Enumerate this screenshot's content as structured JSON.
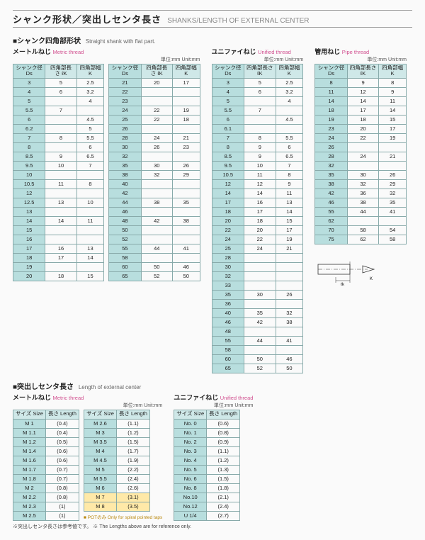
{
  "title": {
    "jp": "シャンク形状／突出しセンタ長さ",
    "en": "SHANKS/LENGTH OF EXTERNAL CENTER"
  },
  "section1": {
    "jp": "■シャンク四角部形状",
    "en": "Straight shank with flat part."
  },
  "section2": {
    "jp": "■突出しセンタ長さ",
    "en": "Length of external center"
  },
  "unit": "単位:mm Unit:mm",
  "sub": {
    "metric": {
      "jp": "メートルねじ",
      "en": "Metric thread"
    },
    "unified": {
      "jp": "ユニファイねじ",
      "en": "Unified thread"
    },
    "pipe": {
      "jp": "管用ねじ",
      "en": "Pipe thread"
    }
  },
  "hdr3": {
    "c1": "シャンク径\nDs",
    "c2": "四角部長さ\nℓK",
    "c3": "四角部幅\nK"
  },
  "hdr2": {
    "c1": "サイズ\nSize",
    "c2": "長さ\nLength"
  },
  "t1a": [
    [
      "3",
      "5",
      "2.5"
    ],
    [
      "4",
      "6",
      "3.2"
    ],
    [
      "5",
      "",
      "4"
    ],
    [
      "5.5",
      "7",
      ""
    ],
    [
      "6",
      "",
      "4.5"
    ],
    [
      "6.2",
      "",
      "5"
    ],
    [
      "7",
      "8",
      "5.5"
    ],
    [
      "8",
      "",
      "6"
    ],
    [
      "8.5",
      "9",
      "6.5"
    ],
    [
      "9.5",
      "10",
      "7"
    ],
    [
      "10",
      "",
      ""
    ],
    [
      "10.5",
      "11",
      "8"
    ],
    [
      "12",
      "",
      ""
    ],
    [
      "12.5",
      "13",
      "10"
    ],
    [
      "13",
      "",
      ""
    ],
    [
      "14",
      "14",
      "11"
    ],
    [
      "15",
      "",
      ""
    ],
    [
      "16",
      "",
      ""
    ],
    [
      "17",
      "16",
      "13"
    ],
    [
      "18",
      "17",
      "14"
    ],
    [
      "19",
      "",
      ""
    ],
    [
      "20",
      "18",
      "15"
    ]
  ],
  "t1b": [
    [
      "21",
      "20",
      "17"
    ],
    [
      "22",
      "",
      ""
    ],
    [
      "23",
      "",
      ""
    ],
    [
      "24",
      "22",
      "19"
    ],
    [
      "25",
      "22",
      "18"
    ],
    [
      "26",
      "",
      ""
    ],
    [
      "28",
      "24",
      "21"
    ],
    [
      "30",
      "26",
      "23"
    ],
    [
      "32",
      "",
      ""
    ],
    [
      "35",
      "30",
      "26"
    ],
    [
      "38",
      "32",
      "29"
    ],
    [
      "40",
      "",
      ""
    ],
    [
      "42",
      "",
      ""
    ],
    [
      "44",
      "38",
      "35"
    ],
    [
      "46",
      "",
      ""
    ],
    [
      "48",
      "42",
      "38"
    ],
    [
      "50",
      "",
      ""
    ],
    [
      "52",
      "",
      ""
    ],
    [
      "55",
      "44",
      "41"
    ],
    [
      "58",
      "",
      ""
    ],
    [
      "60",
      "50",
      "46"
    ],
    [
      "65",
      "52",
      "50"
    ]
  ],
  "t2": [
    [
      "3",
      "5",
      "2.5"
    ],
    [
      "4",
      "6",
      "3.2"
    ],
    [
      "5",
      "",
      "4"
    ],
    [
      "5.5",
      "7",
      ""
    ],
    [
      "6",
      "",
      "4.5"
    ],
    [
      "6.1",
      "",
      ""
    ],
    [
      "7",
      "8",
      "5.5"
    ],
    [
      "8",
      "9",
      "6"
    ],
    [
      "8.5",
      "9",
      "6.5"
    ],
    [
      "9.5",
      "10",
      "7"
    ],
    [
      "10.5",
      "11",
      "8"
    ],
    [
      "12",
      "12",
      "9"
    ],
    [
      "14",
      "14",
      "11"
    ],
    [
      "17",
      "16",
      "13"
    ],
    [
      "18",
      "17",
      "14"
    ],
    [
      "20",
      "18",
      "15"
    ],
    [
      "22",
      "20",
      "17"
    ],
    [
      "24",
      "22",
      "19"
    ],
    [
      "25",
      "24",
      "21"
    ],
    [
      "28",
      "",
      ""
    ],
    [
      "30",
      "",
      ""
    ],
    [
      "32",
      "",
      ""
    ],
    [
      "33",
      "",
      ""
    ],
    [
      "35",
      "30",
      "26"
    ],
    [
      "36",
      "",
      ""
    ],
    [
      "40",
      "35",
      "32"
    ],
    [
      "46",
      "42",
      "38"
    ],
    [
      "48",
      "",
      ""
    ],
    [
      "55",
      "44",
      "41"
    ],
    [
      "58",
      "",
      ""
    ],
    [
      "60",
      "50",
      "46"
    ],
    [
      "65",
      "52",
      "50"
    ]
  ],
  "t3": [
    [
      "8",
      "9",
      "8"
    ],
    [
      "11",
      "12",
      "9"
    ],
    [
      "14",
      "14",
      "11"
    ],
    [
      "18",
      "17",
      "14"
    ],
    [
      "19",
      "18",
      "15"
    ],
    [
      "23",
      "20",
      "17"
    ],
    [
      "24",
      "22",
      "19"
    ],
    [
      "26",
      "",
      ""
    ],
    [
      "28",
      "24",
      "21"
    ],
    [
      "32",
      "",
      ""
    ],
    [
      "35",
      "30",
      "26"
    ],
    [
      "38",
      "32",
      "29"
    ],
    [
      "42",
      "36",
      "32"
    ],
    [
      "46",
      "38",
      "35"
    ],
    [
      "55",
      "44",
      "41"
    ],
    [
      "62",
      "",
      ""
    ],
    [
      "70",
      "58",
      "54"
    ],
    [
      "75",
      "62",
      "58"
    ]
  ],
  "len_m1": [
    [
      "M 1",
      "(0.4)"
    ],
    [
      "M 1.1",
      "(0.4)"
    ],
    [
      "M 1.2",
      "(0.5)"
    ],
    [
      "M 1.4",
      "(0.6)"
    ],
    [
      "M 1.6",
      "(0.6)"
    ],
    [
      "M 1.7",
      "(0.7)"
    ],
    [
      "M 1.8",
      "(0.7)"
    ],
    [
      "M 2",
      "(0.8)"
    ],
    [
      "M 2.2",
      "(0.8)"
    ],
    [
      "M 2.3",
      "(1)"
    ],
    [
      "M 2.5",
      "(1)"
    ]
  ],
  "len_m2": [
    [
      "M 2.6",
      "(1.1)"
    ],
    [
      "M 3",
      "(1.2)"
    ],
    [
      "M 3.5",
      "(1.5)"
    ],
    [
      "M 4",
      "(1.7)"
    ],
    [
      "M 4.5",
      "(1.9)"
    ],
    [
      "M 5",
      "(2.2)"
    ],
    [
      "M 5.5",
      "(2.4)"
    ],
    [
      "M 6",
      "(2.6)"
    ],
    [
      "M 7",
      "(3.1)"
    ],
    [
      "M 8",
      "(3.5)"
    ]
  ],
  "len_u": [
    [
      "No. 0",
      "(0.6)"
    ],
    [
      "No. 1",
      "(0.8)"
    ],
    [
      "No. 2",
      "(0.9)"
    ],
    [
      "No. 3",
      "(1.1)"
    ],
    [
      "No. 4",
      "(1.2)"
    ],
    [
      "No. 5",
      "(1.3)"
    ],
    [
      "No. 6",
      "(1.5)"
    ],
    [
      "No. 8",
      "(1.8)"
    ],
    [
      "No.10",
      "(2.1)"
    ],
    [
      "No.12",
      "(2.4)"
    ],
    [
      "U 1/4",
      "(2.7)"
    ]
  ],
  "note1": "※突出しセンタ長さは参考値です。",
  "note1en": "※ The Lengths above are for reference only.",
  "pot": "■ POTのみ Only for spiral pointed taps"
}
